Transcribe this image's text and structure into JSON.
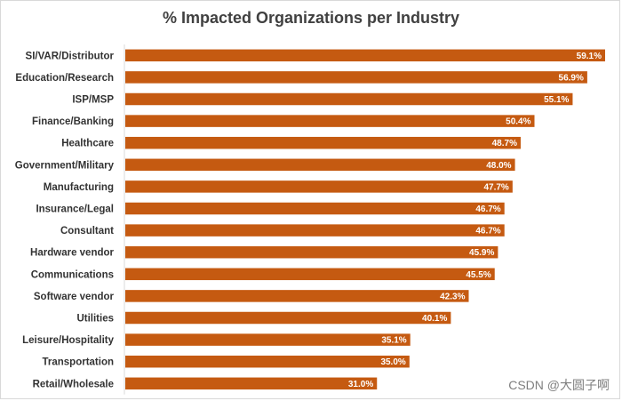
{
  "chart_data": {
    "type": "bar",
    "orientation": "horizontal",
    "title": "% Impacted Organizations per Industry",
    "xlabel": "",
    "ylabel": "",
    "xlim": [
      0,
      60
    ],
    "grid": false,
    "bar_color": "#C55A11",
    "categories": [
      "SI/VAR/Distributor",
      "Education/Research",
      "ISP/MSP",
      "Finance/Banking",
      "Healthcare",
      "Government/Military",
      "Manufacturing",
      "Insurance/Legal",
      "Consultant",
      "Hardware vendor",
      "Communications",
      "Software vendor",
      "Utilities",
      "Leisure/Hospitality",
      "Transportation",
      "Retail/Wholesale"
    ],
    "values": [
      59.1,
      56.9,
      55.1,
      50.4,
      48.7,
      48.0,
      47.7,
      46.7,
      46.7,
      45.9,
      45.5,
      42.3,
      40.1,
      35.1,
      35.0,
      31.0
    ],
    "labels": [
      "59.1%",
      "56.9%",
      "55.1%",
      "50.4%",
      "48.7%",
      "48.0%",
      "47.7%",
      "46.7%",
      "46.7%",
      "45.9%",
      "45.5%",
      "42.3%",
      "40.1%",
      "35.1%",
      "35.0%",
      "31.0%"
    ]
  },
  "watermark": "CSDN @大圆子啊"
}
